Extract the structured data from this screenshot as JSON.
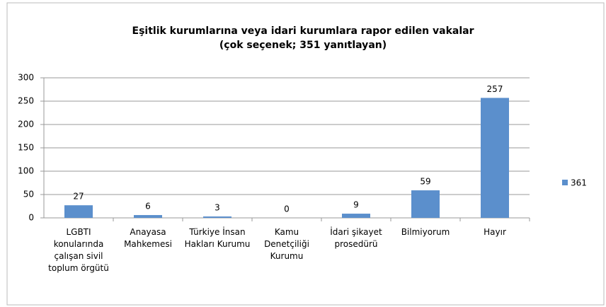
{
  "chart_data": {
    "type": "bar",
    "title": "Eşitlik kurumlarına veya idari kurumlara rapor edilen vakalar",
    "subtitle": "(çok seçenek; 351 yanıtlayan)",
    "categories": [
      "LGBTI konularında çalışan sivil toplum örgütü",
      "Anayasa Mahkemesi",
      "Türkiye İnsan Hakları Kurumu",
      "Kamu Denetçiliği Kurumu",
      "İdari şikayet prosedürü",
      "Bilmiyorum",
      "Hayır"
    ],
    "series": [
      {
        "name": "361",
        "color": "#5b8fcc",
        "values": [
          27,
          6,
          3,
          0,
          9,
          59,
          257
        ]
      }
    ],
    "ylim": [
      0,
      300
    ],
    "yticks": [
      0,
      50,
      100,
      150,
      200,
      250,
      300
    ],
    "grid": true,
    "legend": "right"
  }
}
